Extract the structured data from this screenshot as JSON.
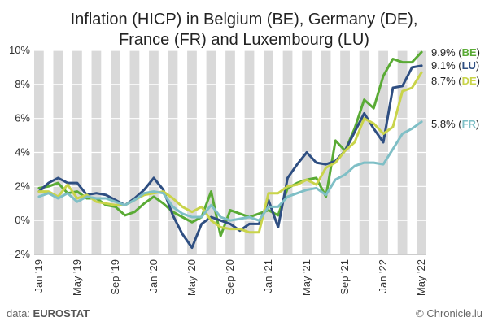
{
  "title_line1": "Inflation (HICP) in Belgium (BE), Germany (DE),",
  "title_line2": "France (FR) and Luxembourg (LU)",
  "source_prefix": "data: ",
  "source_name": "EUROSTAT",
  "credit": "© Chronicle.lu",
  "colors": {
    "BE": "#5aab35",
    "LU": "#2f4f82",
    "DE": "#c9d44a",
    "FR": "#7fbfc6",
    "stripe": "#d9d9d9"
  },
  "end_labels": [
    {
      "key": "BE",
      "value": "9.9%",
      "code": "BE"
    },
    {
      "key": "LU",
      "value": "9.1%",
      "code": "LU"
    },
    {
      "key": "DE",
      "value": "8.7%",
      "code": "DE"
    },
    {
      "key": "FR",
      "value": "5.8%",
      "code": "FR"
    }
  ],
  "chart_data": {
    "type": "line",
    "title": "Inflation (HICP) in Belgium (BE), Germany (DE), France (FR) and Luxembourg (LU)",
    "x_labels": [
      "Jan '19",
      "May '19",
      "Sep '19",
      "Jan '20",
      "May '20",
      "Sep '20",
      "Jan '21",
      "May '21",
      "Sep '21",
      "Jan '22",
      "May '22"
    ],
    "x_label_interval_months": 4,
    "x_start": "2019-01",
    "x_end": "2022-05",
    "ylim": [
      -2,
      10
    ],
    "y_ticks": [
      -2,
      0,
      2,
      4,
      6,
      8,
      10
    ],
    "y_tick_labels": [
      "−2%",
      "0%",
      "2%",
      "4%",
      "6%",
      "8%",
      "10%"
    ],
    "series": [
      {
        "key": "BE",
        "name": "BE",
        "values": [
          1.9,
          2.0,
          2.2,
          1.6,
          1.7,
          1.3,
          1.3,
          0.9,
          0.8,
          0.3,
          0.5,
          1.0,
          1.4,
          1.0,
          0.5,
          0.2,
          -0.1,
          0.2,
          1.7,
          -0.9,
          0.6,
          0.4,
          0.2,
          0.4,
          0.6,
          0.3,
          1.9,
          2.2,
          2.4,
          2.5,
          1.4,
          4.7,
          4.1,
          5.4,
          7.1,
          6.6,
          8.5,
          9.5,
          9.3,
          9.3,
          9.9
        ]
      },
      {
        "key": "LU",
        "name": "LU",
        "values": [
          1.7,
          2.2,
          2.5,
          2.2,
          2.2,
          1.5,
          1.6,
          1.5,
          1.2,
          0.9,
          1.3,
          1.8,
          2.5,
          1.8,
          0.3,
          -0.8,
          -1.6,
          -0.2,
          0.2,
          0.0,
          -0.2,
          -0.6,
          -0.2,
          -0.2,
          1.2,
          -0.4,
          2.5,
          3.3,
          4.0,
          3.4,
          3.3,
          3.5,
          4.1,
          5.2,
          6.3,
          5.4,
          4.6,
          7.8,
          7.9,
          9.0,
          9.1
        ]
      },
      {
        "key": "DE",
        "name": "DE",
        "values": [
          1.7,
          1.7,
          1.4,
          2.1,
          1.3,
          1.5,
          1.1,
          1.0,
          0.9,
          0.9,
          1.2,
          1.5,
          1.6,
          1.7,
          1.3,
          0.8,
          0.5,
          0.8,
          0.0,
          -0.4,
          -0.5,
          -0.5,
          -0.7,
          -0.7,
          1.6,
          1.6,
          2.0,
          2.1,
          2.4,
          2.1,
          3.1,
          3.4,
          4.1,
          4.6,
          6.0,
          5.7,
          5.1,
          5.5,
          7.6,
          7.8,
          8.7
        ]
      },
      {
        "key": "FR",
        "name": "FR",
        "values": [
          1.4,
          1.6,
          1.3,
          1.6,
          1.1,
          1.4,
          1.3,
          1.3,
          1.1,
          0.9,
          1.2,
          1.6,
          1.7,
          1.6,
          0.8,
          0.4,
          0.2,
          0.2,
          0.9,
          0.2,
          0.0,
          0.1,
          0.2,
          0.0,
          0.8,
          0.8,
          1.4,
          1.6,
          1.8,
          1.9,
          1.5,
          2.4,
          2.7,
          3.2,
          3.4,
          3.4,
          3.3,
          4.2,
          5.1,
          5.4,
          5.8
        ]
      }
    ],
    "grid": true,
    "background": "alternating vertical month stripes"
  }
}
